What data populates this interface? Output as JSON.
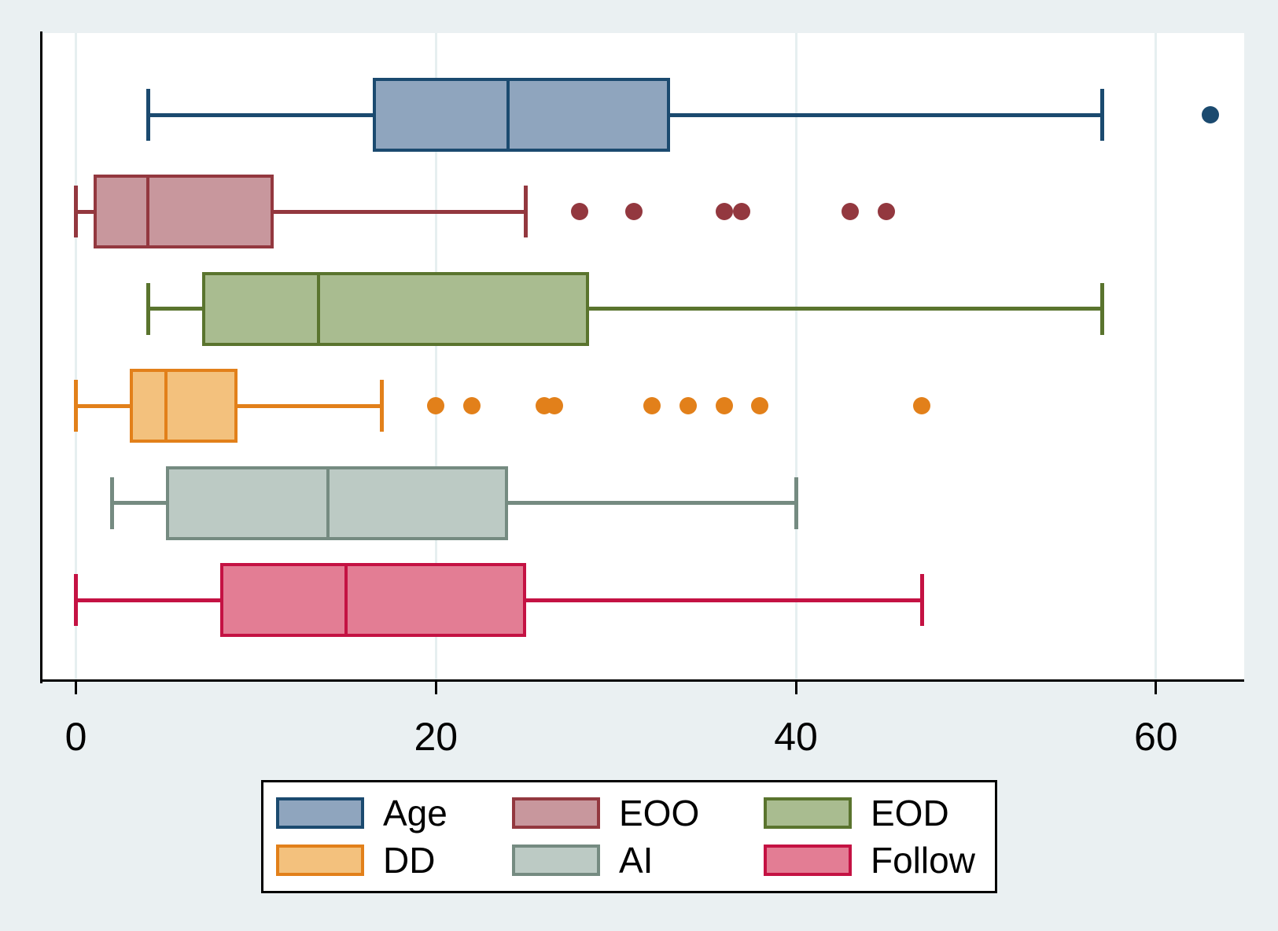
{
  "chart_data": {
    "type": "boxplot",
    "orientation": "horizontal",
    "title": "",
    "xlabel": "",
    "ylabel": "",
    "x_ticks": [
      0,
      20,
      40,
      60
    ],
    "x_range": [
      -1.9,
      64.9
    ],
    "grid": true,
    "legend_position": "bottom",
    "series": [
      {
        "name": "Age",
        "fill": "#8FA5BE",
        "stroke": "#1B4A6F",
        "whisker_low": 4,
        "q1": 16.5,
        "median": 24,
        "q3": 33,
        "whisker_high": 57,
        "outliers": [
          63
        ]
      },
      {
        "name": "EOO",
        "fill": "#C8979D",
        "stroke": "#93383F",
        "whisker_low": 0,
        "q1": 1,
        "median": 4,
        "q3": 11,
        "whisker_high": 25,
        "outliers": [
          28,
          31,
          36,
          37,
          43,
          45
        ]
      },
      {
        "name": "EOD",
        "fill": "#A9BC90",
        "stroke": "#5A742E",
        "whisker_low": 4,
        "q1": 7,
        "median": 13.5,
        "q3": 28.5,
        "whisker_high": 57,
        "outliers": []
      },
      {
        "name": "DD",
        "fill": "#F3C17D",
        "stroke": "#E2801A",
        "whisker_low": 0,
        "q1": 3,
        "median": 5,
        "q3": 9,
        "whisker_high": 17,
        "outliers": [
          20,
          22,
          26,
          26.6,
          32,
          34,
          36,
          38,
          47
        ]
      },
      {
        "name": "AI",
        "fill": "#BCCAC4",
        "stroke": "#758B81",
        "whisker_low": 2,
        "q1": 5,
        "median": 14,
        "q3": 24,
        "whisker_high": 40,
        "outliers": []
      },
      {
        "name": "Follow",
        "fill": "#E37D94",
        "stroke": "#C41243",
        "whisker_low": 0,
        "q1": 8,
        "median": 15,
        "q3": 25,
        "whisker_high": 47,
        "outliers": []
      }
    ],
    "legend": [
      "Age",
      "EOO",
      "EOD",
      "DD",
      "AI",
      "Follow"
    ],
    "tick_labels": [
      "0",
      "20",
      "40",
      "60"
    ]
  },
  "colors": {
    "background": "#EAF0F2",
    "plot_background": "#FFFFFF",
    "gridline": "#E6EFF0",
    "axis": "#000000",
    "legend_border": "#000000"
  }
}
